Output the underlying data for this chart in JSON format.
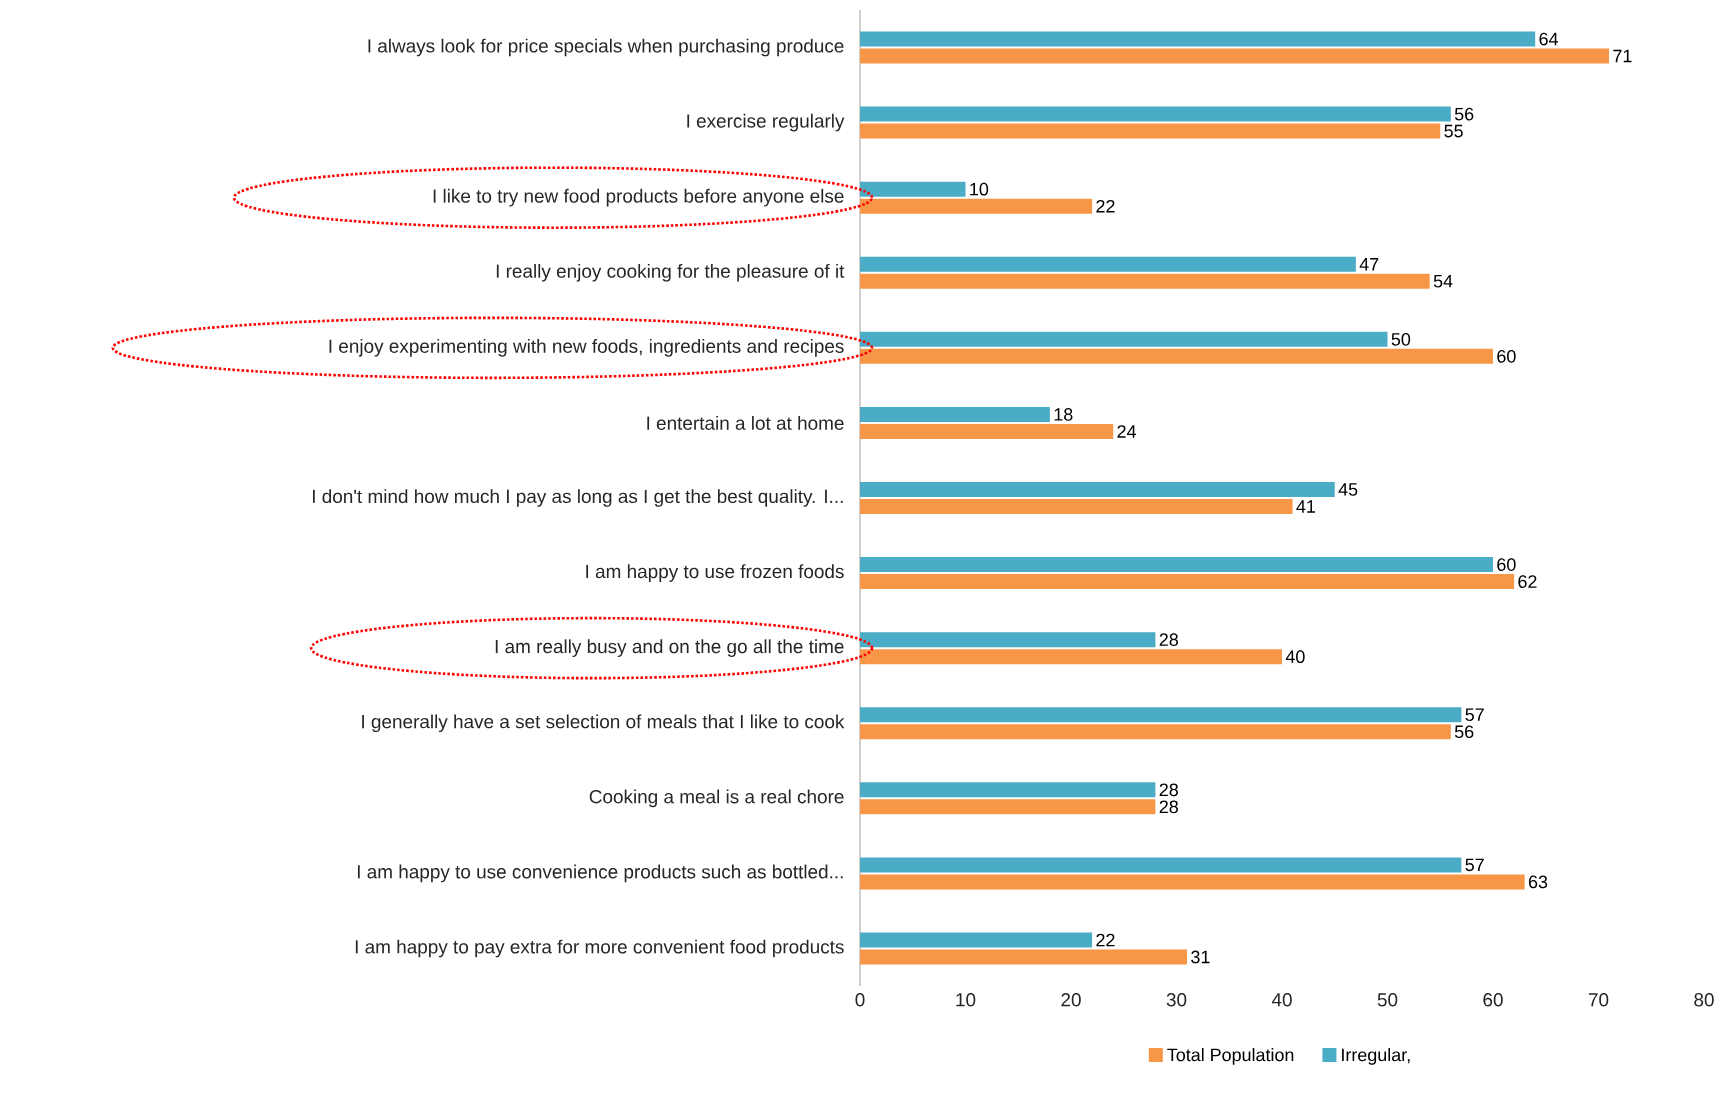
{
  "chart_data": {
    "type": "bar",
    "orientation": "horizontal",
    "categories": [
      "I always look for price specials when purchasing produce",
      "I exercise regularly",
      "I like to try new food products before anyone else",
      "I really enjoy cooking for the pleasure of it",
      "I enjoy experimenting with new foods, ingredients and recipes",
      "I entertain a lot at home",
      "I don't mind how much I pay as long as I get the best quality. I...",
      "I am happy to use frozen foods",
      "I am really busy and on the go all the time",
      "I generally have a set selection of meals that I like to cook",
      "Cooking a meal is a real chore",
      "I am happy to use convenience products such as bottled...",
      "I am happy to pay extra for more convenient food products"
    ],
    "series": [
      {
        "name": "Total Population",
        "color": "#f79646",
        "values": [
          71,
          55,
          22,
          54,
          60,
          24,
          41,
          62,
          40,
          56,
          28,
          63,
          31
        ]
      },
      {
        "name": "Irregular,",
        "color": "#4bacc6",
        "values": [
          64,
          56,
          10,
          47,
          50,
          18,
          45,
          60,
          28,
          57,
          28,
          57,
          22
        ]
      }
    ],
    "xlim": [
      0,
      80
    ],
    "xticks": [
      0,
      10,
      20,
      30,
      40,
      50,
      60,
      70,
      80
    ],
    "data_labels": true,
    "legend": "bottom",
    "grid": false
  }
}
